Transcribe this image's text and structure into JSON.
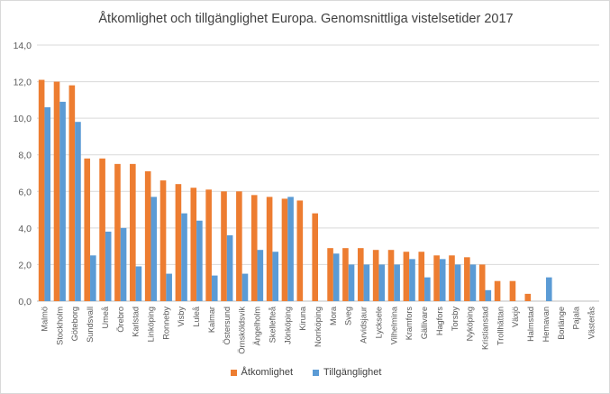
{
  "chart_data": {
    "type": "bar",
    "title": "Åtkomlighet och tillgänglighet Europa. Genomsnittliga vistelsetider 2017",
    "xlabel": "",
    "ylabel": "",
    "ylim": [
      0,
      14
    ],
    "yticks": [
      "0,0",
      "2,0",
      "4,0",
      "6,0",
      "8,0",
      "10,0",
      "12,0",
      "14,0"
    ],
    "grid": true,
    "legend_position": "bottom",
    "categories": [
      "Malmö",
      "Stockholm",
      "Göteborg",
      "Sundsvall",
      "Umeå",
      "Örebro",
      "Karlstad",
      "Linköping",
      "Ronneby",
      "Visby",
      "Luleå",
      "Kalmar",
      "Östersund",
      "Örnsköldsvik",
      "Ängelholm",
      "Skellefteå",
      "Jönköping",
      "Kiruna",
      "Norrköping",
      "Mora",
      "Sveg",
      "Arvidsjaur",
      "Lycksele",
      "Vilhelmina",
      "Kramfors",
      "Gällivare",
      "Hagfors",
      "Torsby",
      "Nyköping",
      "Kristianstad",
      "Trollhättan",
      "Växjö",
      "Halmstad",
      "Hemavan",
      "Borlänge",
      "Pajala",
      "Västerås"
    ],
    "series": [
      {
        "name": "Åtkomlighet",
        "color": "#ed7d31",
        "values": [
          12.1,
          12.0,
          11.8,
          7.8,
          7.8,
          7.5,
          7.5,
          7.1,
          6.6,
          6.4,
          6.2,
          6.1,
          6.0,
          6.0,
          5.8,
          5.7,
          5.6,
          5.5,
          4.8,
          2.9,
          2.9,
          2.9,
          2.8,
          2.8,
          2.7,
          2.7,
          2.5,
          2.5,
          2.4,
          2.0,
          1.1,
          1.1,
          0.4,
          0.0,
          0.0,
          0.0,
          0.0
        ]
      },
      {
        "name": "Tillgänglighet",
        "color": "#5b9bd5",
        "values": [
          10.6,
          10.9,
          9.8,
          2.5,
          3.8,
          4.0,
          1.9,
          5.7,
          1.5,
          4.8,
          4.4,
          1.4,
          3.6,
          1.5,
          2.8,
          2.7,
          5.7,
          0.0,
          0.0,
          2.6,
          2.0,
          2.0,
          2.0,
          2.0,
          2.3,
          1.3,
          2.3,
          2.0,
          2.0,
          0.6,
          0.0,
          0.0,
          0.0,
          1.3,
          0.0,
          0.0,
          0.0
        ]
      }
    ]
  }
}
